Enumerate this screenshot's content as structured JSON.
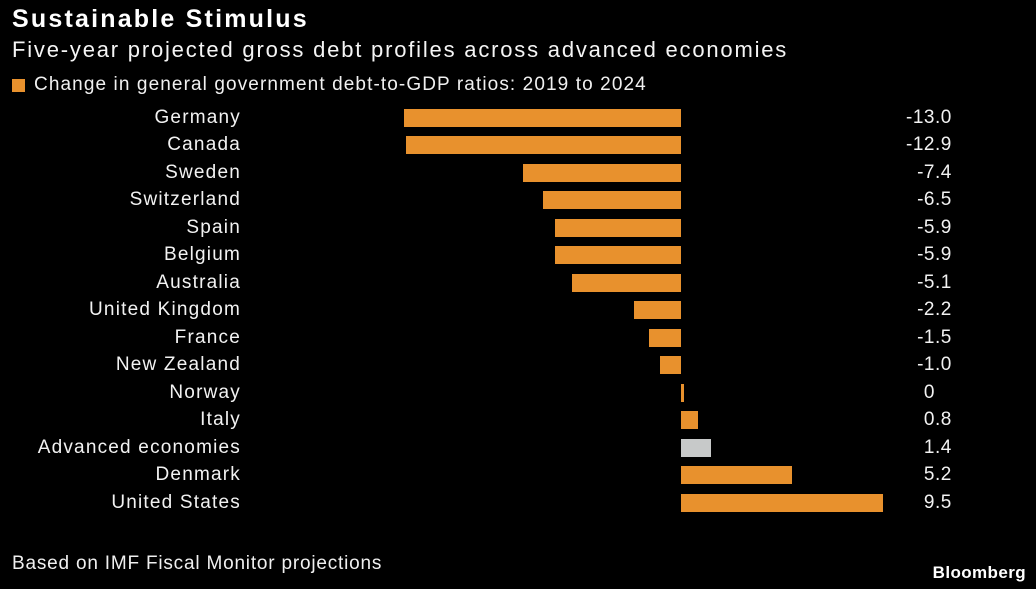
{
  "header": {
    "title": "Sustainable Stimulus",
    "subtitle": "Five-year projected gross debt profiles across advanced economies"
  },
  "legend": {
    "label": "Change in general government debt-to-GDP ratios: 2019 to 2024",
    "swatch_color": "#E8912D"
  },
  "colors": {
    "background": "#000000",
    "bar": "#E8912D",
    "highlight_bar": "#C7C9C9",
    "text": "#FFFFFF"
  },
  "chart_data": {
    "type": "bar",
    "orientation": "horizontal",
    "title": "Sustainable Stimulus",
    "subtitle": "Five-year projected gross debt profiles across advanced economies",
    "legend": "Change in general government debt-to-GDP ratios: 2019 to 2024",
    "categories": [
      "Germany",
      "Canada",
      "Sweden",
      "Switzerland",
      "Spain",
      "Belgium",
      "Australia",
      "United Kingdom",
      "France",
      "New Zealand",
      "Norway",
      "Italy",
      "Advanced economies",
      "Denmark",
      "United States"
    ],
    "values": [
      -13.0,
      -12.9,
      -7.4,
      -6.5,
      -5.9,
      -5.9,
      -5.1,
      -2.2,
      -1.5,
      -1.0,
      0,
      0.8,
      1.4,
      5.2,
      9.5
    ],
    "value_labels": [
      "-13.0",
      "-12.9",
      "-7.4",
      "-6.5",
      "-5.9",
      "-5.9",
      "-5.1",
      "-2.2",
      "-1.5",
      "-1.0",
      "0",
      "0.8",
      "1.4",
      "5.2",
      "9.5"
    ],
    "highlight_category": "Advanced economies",
    "xlim": [
      -13.0,
      9.5
    ],
    "grid": false,
    "legend_position": "top-left",
    "xlabel": "",
    "ylabel": ""
  },
  "footer": {
    "source": "Based on IMF Fiscal Monitor projections",
    "brand": "Bloomberg"
  }
}
